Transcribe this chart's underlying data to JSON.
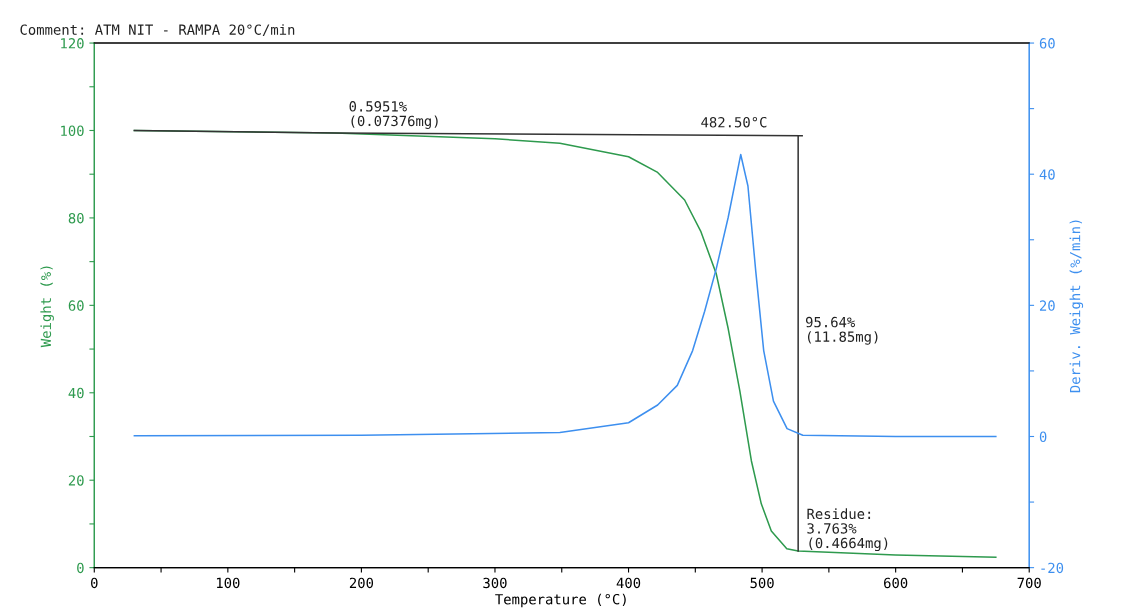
{
  "chart_data": {
    "type": "line",
    "title": "Comment: ATM NIT - RAMPA 20°C/min",
    "xlabel": "Temperature (°C)",
    "ylabel": "Weight (%)",
    "y2label": "Deriv. Weight (%/min)",
    "series": [
      {
        "color": "#2e9a4e",
        "x": [
          30,
          180,
          300,
          348.6,
          400,
          421.8,
          442,
          454,
          465.7,
          474.6,
          483.3,
          492,
          499.4,
          506.9,
          518.5,
          527,
          600,
          675
        ],
        "values": [
          100,
          99.4,
          98.1,
          97.1,
          94.0,
          90.4,
          84.1,
          77.0,
          67.2,
          54.7,
          40.5,
          24.4,
          14.6,
          8.4,
          4.3,
          3.8,
          2.9,
          2.4
        ]
      },
      {
        "color": "#3d8fef",
        "axis": "y2",
        "x": [
          30,
          200,
          348.6,
          400,
          421.8,
          436.5,
          448,
          457,
          465.7,
          474.6,
          484,
          489.4,
          495.3,
          501.2,
          508.5,
          518.7,
          530.5,
          600,
          675
        ],
        "values": [
          0.1,
          0.2,
          0.6,
          2.1,
          4.8,
          7.8,
          13.1,
          19.1,
          25.6,
          33.4,
          43.0,
          38.2,
          25.1,
          13.1,
          5.4,
          1.2,
          0.2,
          0.0,
          0.0
        ]
      },
      {
        "color": "#333333",
        "x": [
          30,
          180,
          530
        ],
        "values": [
          100,
          99.4,
          98.8
        ]
      },
      {
        "color": "#333333",
        "x": [
          527,
          527
        ],
        "values": [
          98.8,
          3.8
        ]
      }
    ],
    "annotations": [
      {
        "text": "0.5951%\n(0.07376mg)",
        "x": 180,
        "y": 99.4
      },
      {
        "text": "482.50°C",
        "x": 530,
        "y": 98.8
      },
      {
        "text": "95.64%\n(11.85mg)",
        "x": 527,
        "y": 51
      },
      {
        "text": "Residue:\n3.763%\n(0.4664mg)",
        "x": 527,
        "y": 3.8
      }
    ],
    "xlim": [
      0,
      700
    ],
    "xticks": [
      0,
      {
        "value": 50,
        "label": null
      },
      100,
      {
        "value": 150,
        "label": null
      },
      200,
      {
        "value": 250,
        "label": null
      },
      300,
      {
        "value": 350,
        "label": null
      },
      400,
      {
        "value": 450,
        "label": null
      },
      500,
      {
        "value": 550,
        "label": null
      },
      600,
      {
        "value": 650,
        "label": null
      },
      700
    ],
    "ylim": [
      0,
      120
    ],
    "yticks": [
      0,
      {
        "value": 10,
        "label": null
      },
      20,
      {
        "value": 30,
        "label": null
      },
      40,
      {
        "value": 50,
        "label": null
      },
      60,
      {
        "value": 70,
        "label": null
      },
      80,
      {
        "value": 90,
        "label": null
      },
      100,
      {
        "value": 110,
        "label": null
      },
      120
    ],
    "y2lim": [
      -20,
      60
    ],
    "y2ticks": [
      -20,
      {
        "value": -10,
        "label": null
      },
      0,
      {
        "value": 10,
        "label": null
      },
      20,
      {
        "value": 30,
        "label": null
      },
      40,
      {
        "value": 50,
        "label": null
      },
      60
    ],
    "grid": false,
    "legend": false
  }
}
